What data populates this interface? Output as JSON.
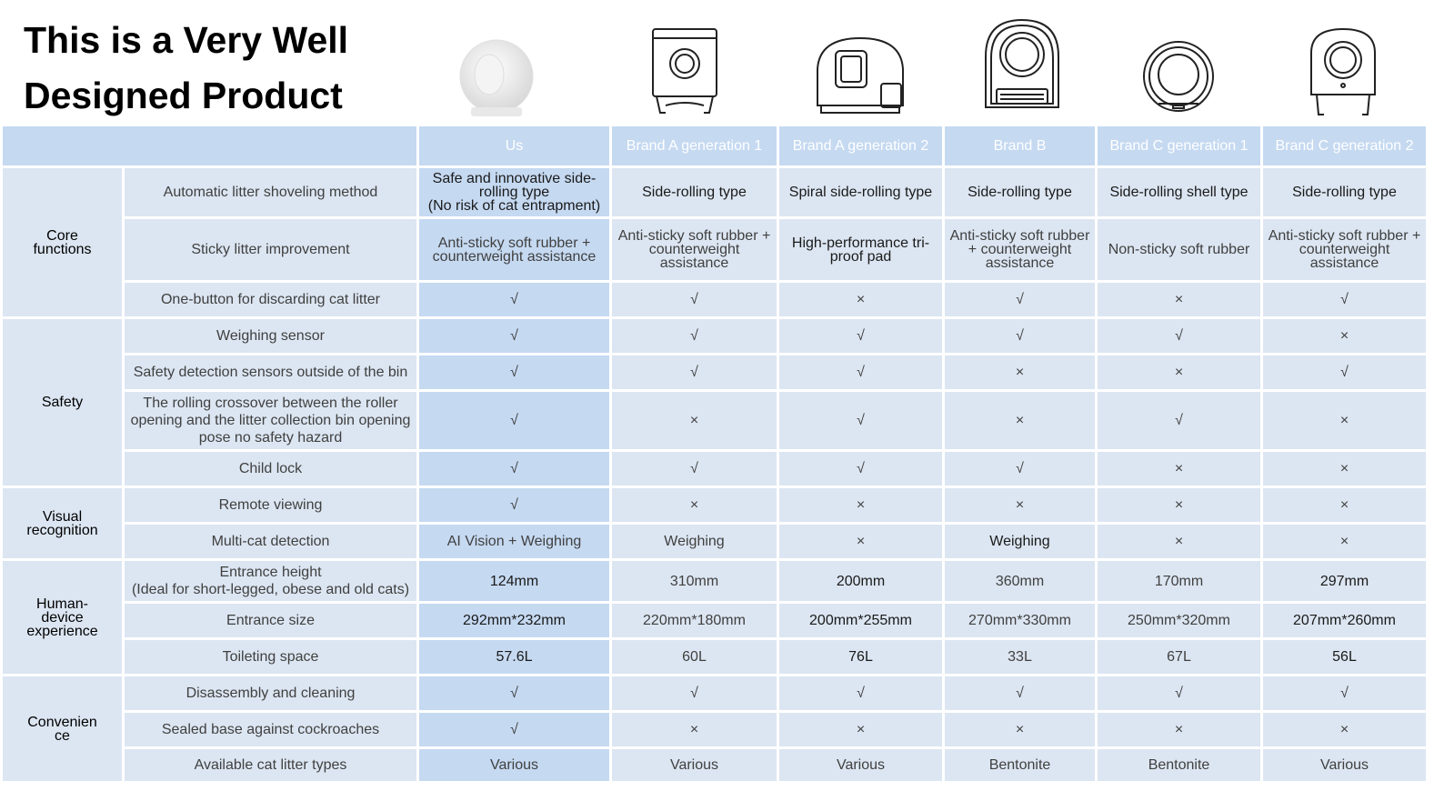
{
  "title_lines": [
    "This is a Very Well",
    "Designed Product"
  ],
  "columns": [
    "Us",
    "Brand A generation 1",
    "Brand A generation 2",
    "Brand B",
    "Brand C generation 1",
    "Brand C generation 2"
  ],
  "rows": [
    {
      "feature": "Automatic litter shoveling method",
      "values": [
        "Safe and innovative side-rolling type\n(No risk of cat entrapment)",
        "Side-rolling type",
        "Spiral side-rolling type",
        "Side-rolling type",
        "Side-rolling shell type",
        "Side-rolling type"
      ]
    },
    {
      "feature": "Sticky litter improvement",
      "values": [
        "Anti-sticky soft rubber + counterweight assistance",
        "Anti-sticky soft rubber + counterweight assistance",
        "High-performance tri-proof pad",
        "Anti-sticky soft rubber + counterweight assistance",
        "Non-sticky soft rubber",
        "Anti-sticky soft rubber + counterweight assistance"
      ]
    },
    {
      "feature": "One-button for discarding cat litter",
      "values": [
        "√",
        "√",
        "×",
        "√",
        "×",
        "√"
      ]
    },
    {
      "feature": "Weighing sensor",
      "values": [
        "√",
        "√",
        "√",
        "√",
        "√",
        "×"
      ]
    },
    {
      "feature": "Safety detection sensors outside of the bin",
      "values": [
        "√",
        "√",
        "√",
        "×",
        "×",
        "√"
      ]
    },
    {
      "feature": "The rolling crossover between the roller opening and the litter collection bin opening pose no safety hazard",
      "values": [
        "√",
        "×",
        "√",
        "×",
        "√",
        "×"
      ]
    },
    {
      "feature": "Child lock",
      "values": [
        "√",
        "√",
        "√",
        "√",
        "×",
        "×"
      ]
    },
    {
      "feature": "Remote viewing",
      "values": [
        "√",
        "×",
        "×",
        "×",
        "×",
        "×"
      ]
    },
    {
      "feature": "Multi-cat detection",
      "values": [
        "AI Vision + Weighing",
        "Weighing",
        "×",
        "Weighing",
        "×",
        "×"
      ]
    },
    {
      "feature": "Entrance height\n(Ideal for short-legged, obese and old cats)",
      "values": [
        "124mm",
        "310mm",
        "200mm",
        "360mm",
        "170mm",
        "297mm"
      ]
    },
    {
      "feature": "Entrance size",
      "values": [
        "292mm*232mm",
        "220mm*180mm",
        "200mm*255mm",
        "270mm*330mm",
        "250mm*320mm",
        "207mm*260mm"
      ]
    },
    {
      "feature": "Toileting space",
      "values": [
        "57.6L",
        "60L",
        "76L",
        "33L",
        "67L",
        "56L"
      ]
    },
    {
      "feature": "Disassembly and cleaning",
      "values": [
        "√",
        "√",
        "√",
        "√",
        "√",
        "√"
      ]
    },
    {
      "feature": "Sealed base against cockroaches",
      "values": [
        "√",
        "×",
        "×",
        "×",
        "×",
        "×"
      ]
    },
    {
      "feature": "Available cat litter types",
      "values": [
        "Various",
        "Various",
        "Various",
        "Bentonite",
        "Bentonite",
        "Various"
      ]
    }
  ],
  "categories": [
    {
      "label": "Core\nfunctions"
    },
    {
      "label": "Safety"
    },
    {
      "label": "Visual\nrecognition"
    },
    {
      "label": "Human-\ndevice\nexperience"
    },
    {
      "label": "Convenien\nce"
    }
  ],
  "colors": {
    "header_blue": "#c5d9f1",
    "row_bg": "#dce6f2",
    "us_col": "#c5d9f1"
  }
}
